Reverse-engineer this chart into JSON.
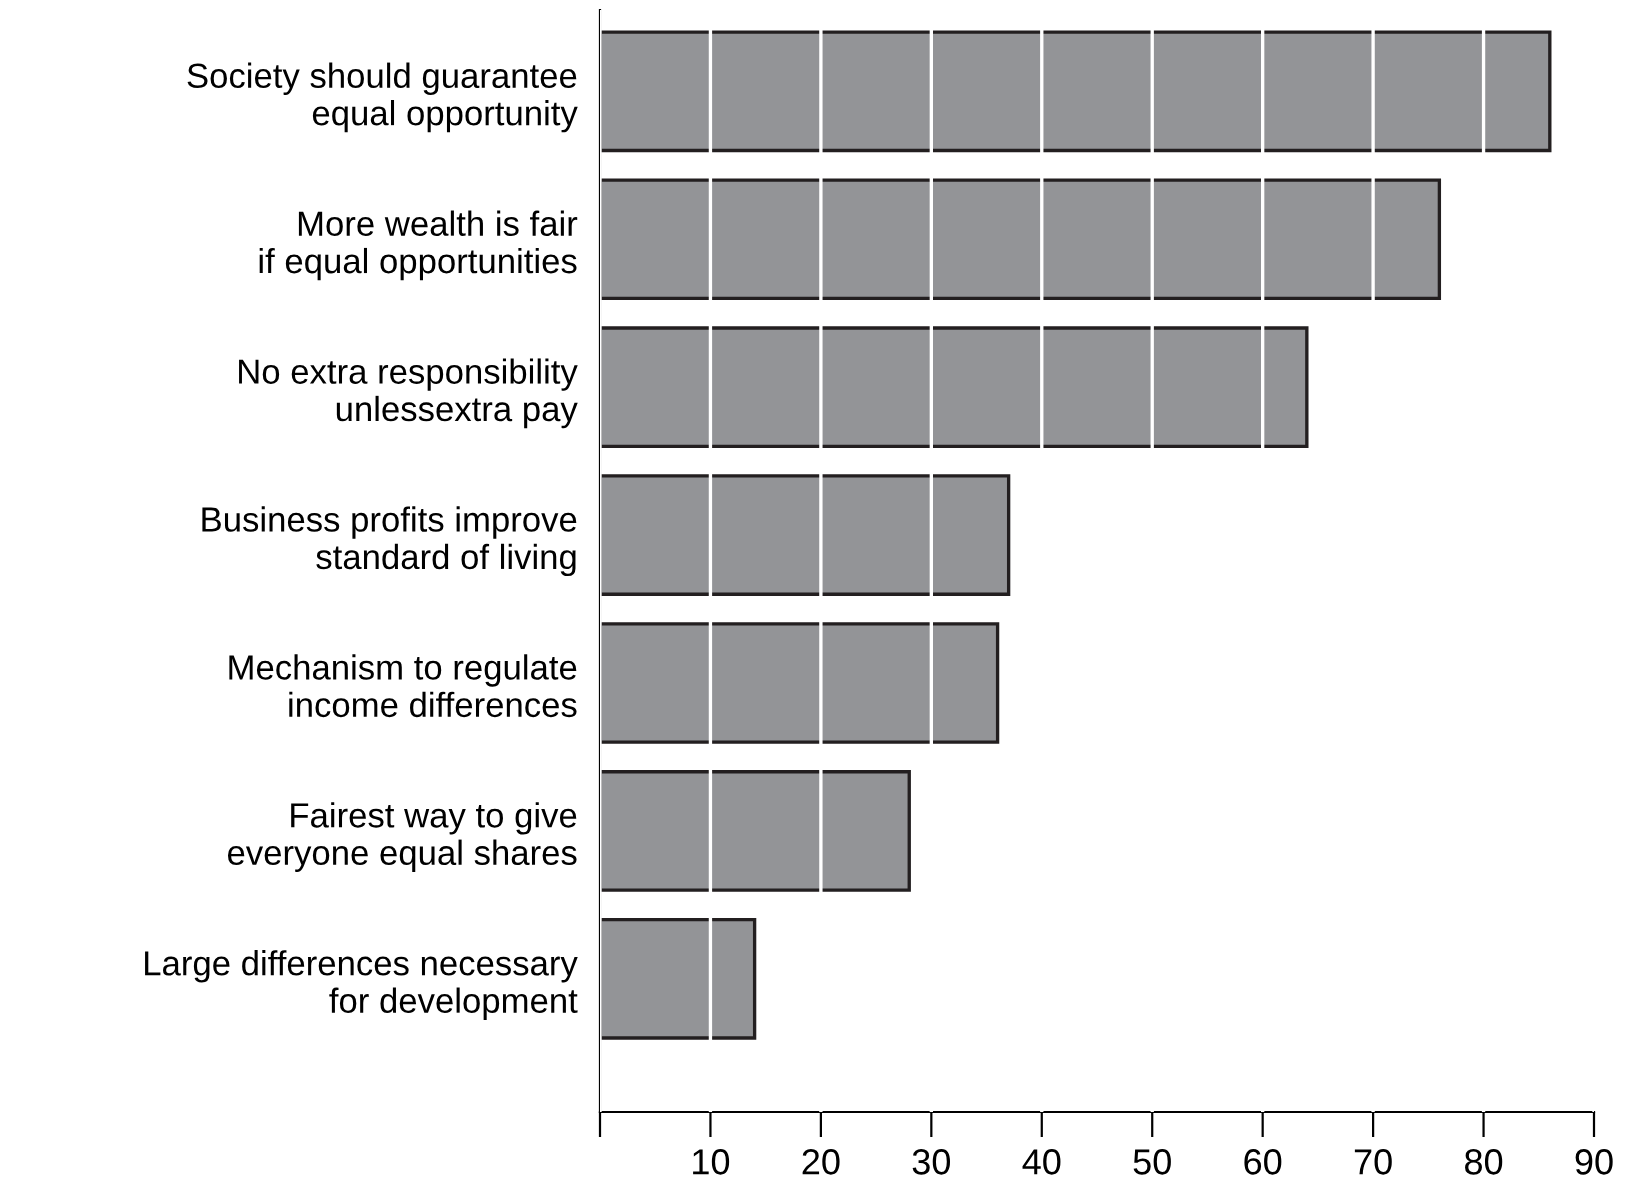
{
  "chart_data": {
    "type": "bar",
    "orientation": "horizontal",
    "categories": [
      "Society should guarantee\nequal opportunity",
      "More wealth is fair\nif equal opportunities",
      "No extra responsibility\nunlessextra pay",
      "Business profits improve\nstandard of living",
      "Mechanism to regulate\nincome differences",
      "Fairest way to give\neveryone equal shares",
      "Large differences necessary\nfor development"
    ],
    "values": [
      86,
      76,
      64,
      37,
      36,
      28,
      14
    ],
    "color": "#939497",
    "xlim": [
      0,
      90
    ],
    "xticks": [
      {
        "value": 0,
        "label": null
      },
      10,
      20,
      30,
      40,
      50,
      60,
      70,
      80,
      90
    ],
    "grid": "x"
  }
}
